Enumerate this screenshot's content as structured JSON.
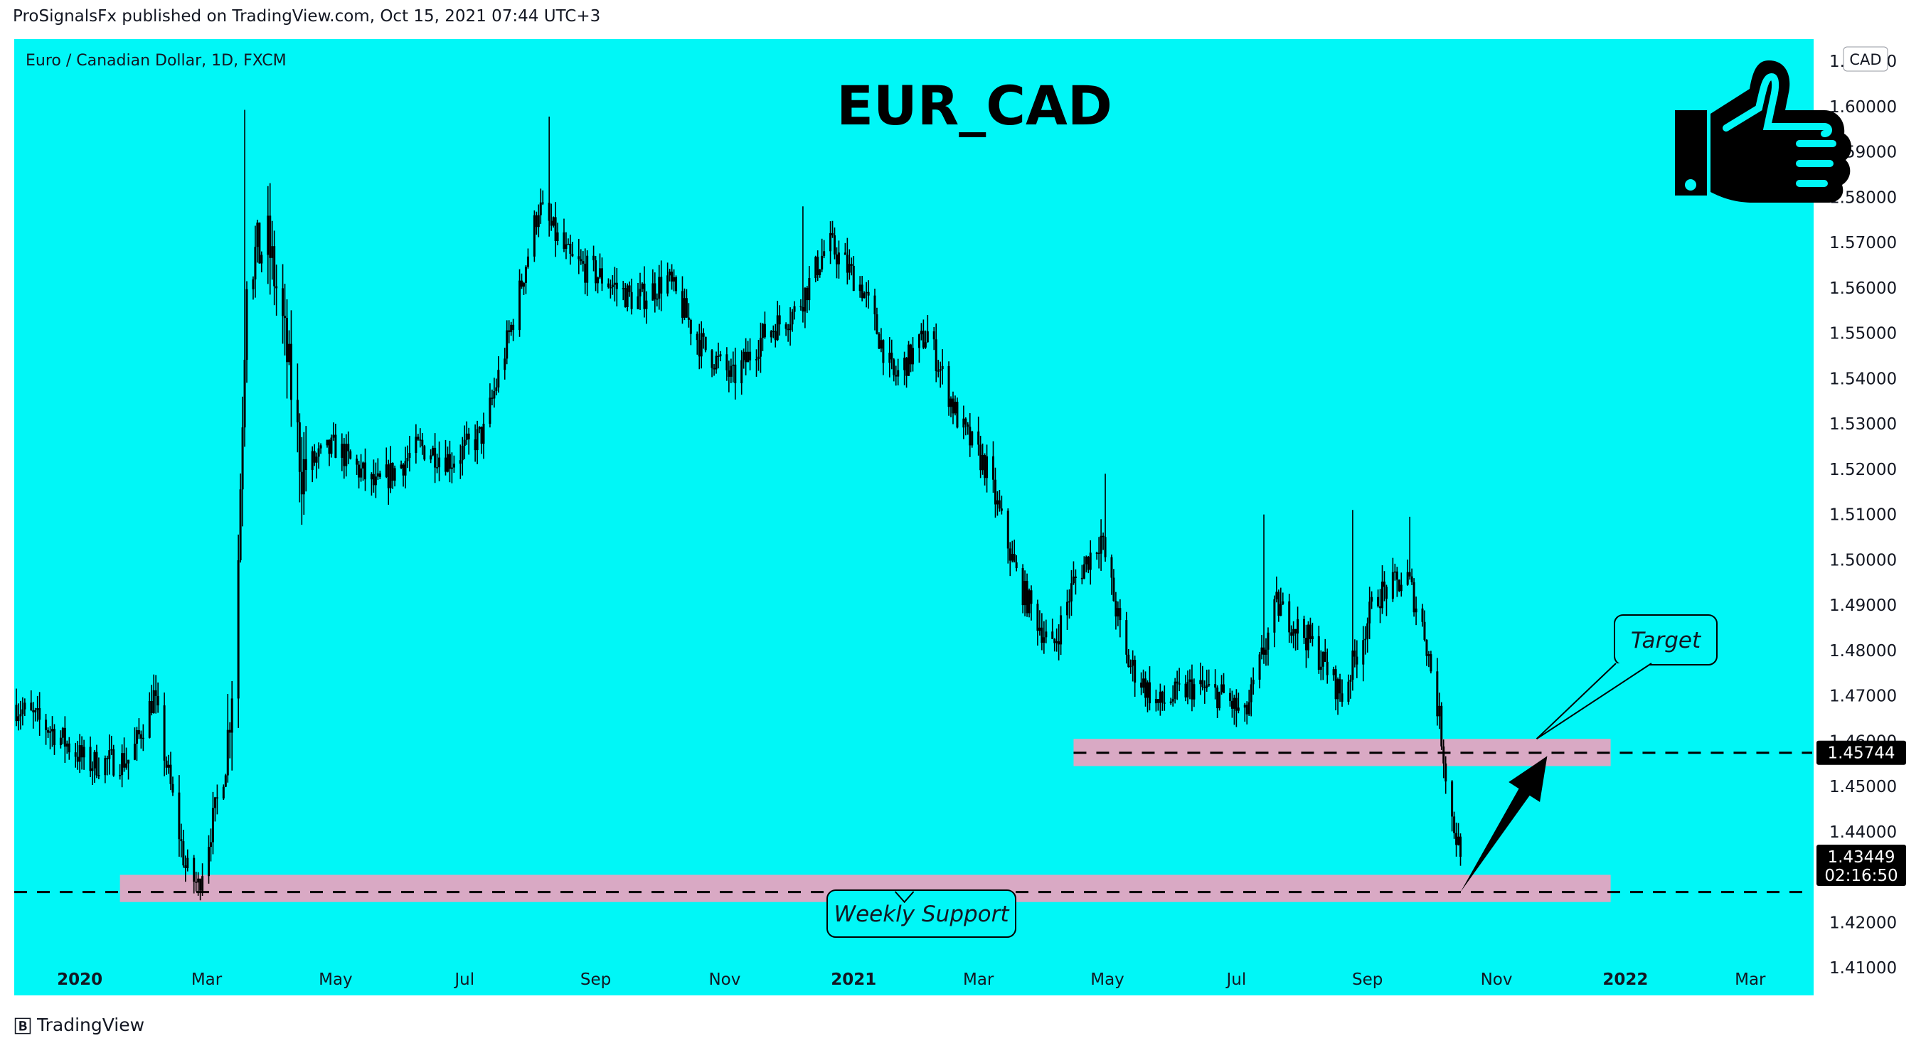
{
  "publish_line": "ProSignalsFx published on TradingView.com, Oct 15, 2021 07:44 UTC+3",
  "symbol_line": "Euro / Canadian Dollar, 1D, FXCM",
  "title": "EUR_CAD",
  "currency_badge": "CAD",
  "footer_brand": "TradingView",
  "icon": "thumbs-up-icon",
  "colors": {
    "background": "#00f7f7",
    "candles": "#000000",
    "zones": "#d9a9c4",
    "text": "#131722"
  },
  "chart_data": {
    "type": "candlestick",
    "title": "EUR_CAD",
    "symbol": "Euro / Canadian Dollar, 1D, FXCM",
    "x_range": [
      "2019-12-01",
      "2022-03-31"
    ],
    "y_range": [
      1.4039,
      1.6149
    ],
    "x_tick_labels": [
      "2020",
      "Mar",
      "May",
      "Jul",
      "Sep",
      "Nov",
      "2021",
      "Mar",
      "May",
      "Jul",
      "Sep",
      "Nov",
      "2022",
      "Mar"
    ],
    "y_tick_labels": [
      "1.41000",
      "1.42000",
      "1.43000",
      "1.44000",
      "1.45000",
      "1.46000",
      "1.47000",
      "1.48000",
      "1.49000",
      "1.50000",
      "1.51000",
      "1.52000",
      "1.53000",
      "1.54000",
      "1.55000",
      "1.56000",
      "1.57000",
      "1.58000",
      "1.59000",
      "1.60000",
      "1.61000"
    ],
    "price_path": [
      [
        "2019-12-01",
        1.468
      ],
      [
        "2019-12-20",
        1.462
      ],
      [
        "2020-01-05",
        1.455
      ],
      [
        "2020-01-25",
        1.456
      ],
      [
        "2020-02-05",
        1.47
      ],
      [
        "2020-02-20",
        1.432
      ],
      [
        "2020-02-26",
        1.428
      ],
      [
        "2020-03-10",
        1.455
      ],
      [
        "2020-03-15",
        1.485
      ],
      [
        "2020-03-20",
        1.565
      ],
      [
        "2020-03-30",
        1.57
      ],
      [
        "2020-04-05",
        1.555
      ],
      [
        "2020-04-15",
        1.52
      ],
      [
        "2020-05-01",
        1.525
      ],
      [
        "2020-05-20",
        1.516
      ],
      [
        "2020-06-10",
        1.525
      ],
      [
        "2020-06-25",
        1.522
      ],
      [
        "2020-07-10",
        1.528
      ],
      [
        "2020-07-25",
        1.555
      ],
      [
        "2020-08-05",
        1.578
      ],
      [
        "2020-08-20",
        1.566
      ],
      [
        "2020-09-05",
        1.562
      ],
      [
        "2020-09-20",
        1.557
      ],
      [
        "2020-10-05",
        1.562
      ],
      [
        "2020-10-20",
        1.548
      ],
      [
        "2020-11-05",
        1.54
      ],
      [
        "2020-11-20",
        1.55
      ],
      [
        "2020-12-05",
        1.555
      ],
      [
        "2020-12-20",
        1.57
      ],
      [
        "2021-01-05",
        1.56
      ],
      [
        "2021-01-20",
        1.54
      ],
      [
        "2021-02-05",
        1.55
      ],
      [
        "2021-02-20",
        1.53
      ],
      [
        "2021-03-05",
        1.52
      ],
      [
        "2021-03-20",
        1.495
      ],
      [
        "2021-04-05",
        1.48
      ],
      [
        "2021-04-15",
        1.495
      ],
      [
        "2021-04-28",
        1.505
      ],
      [
        "2021-05-10",
        1.478
      ],
      [
        "2021-05-25",
        1.468
      ],
      [
        "2021-06-10",
        1.472
      ],
      [
        "2021-06-25",
        1.47
      ],
      [
        "2021-07-05",
        1.465
      ],
      [
        "2021-07-20",
        1.49
      ],
      [
        "2021-08-05",
        1.482
      ],
      [
        "2021-08-20",
        1.47
      ],
      [
        "2021-09-05",
        1.492
      ],
      [
        "2021-09-20",
        1.496
      ],
      [
        "2021-09-28",
        1.484
      ],
      [
        "2021-10-05",
        1.465
      ],
      [
        "2021-10-10",
        1.445
      ],
      [
        "2021-10-15",
        1.435
      ]
    ],
    "price_extremes": [
      [
        "2020-03-19",
        1.5993
      ],
      [
        "2020-08-10",
        1.5978
      ],
      [
        "2020-12-08",
        1.578
      ],
      [
        "2021-04-30",
        1.519
      ],
      [
        "2021-07-14",
        1.51
      ],
      [
        "2021-08-25",
        1.511
      ],
      [
        "2021-09-21",
        1.5095
      ],
      [
        "2020-02-27",
        1.427
      ],
      [
        "2021-10-15",
        1.4325
      ]
    ],
    "last_price": "1.43449",
    "countdown": "02:16:50",
    "levels": [
      {
        "label": "Target",
        "price": 1.45744,
        "price_label": "1.45744",
        "zone": [
          1.4545,
          1.4605
        ],
        "zone_x": [
          "2021-04-15",
          "2021-12-25"
        ],
        "line_start": "2021-04-15"
      },
      {
        "label": "Weekly Support",
        "price": 1.4267,
        "zone": [
          1.4245,
          1.4305
        ],
        "zone_x": [
          "2020-01-20",
          "2021-12-25"
        ],
        "line_start": "2019-12-01"
      }
    ],
    "arrow": {
      "from": [
        "2021-10-15",
        1.4267
      ],
      "to": [
        "2021-11-25",
        1.4567
      ]
    },
    "grid": false,
    "legend": "none"
  }
}
